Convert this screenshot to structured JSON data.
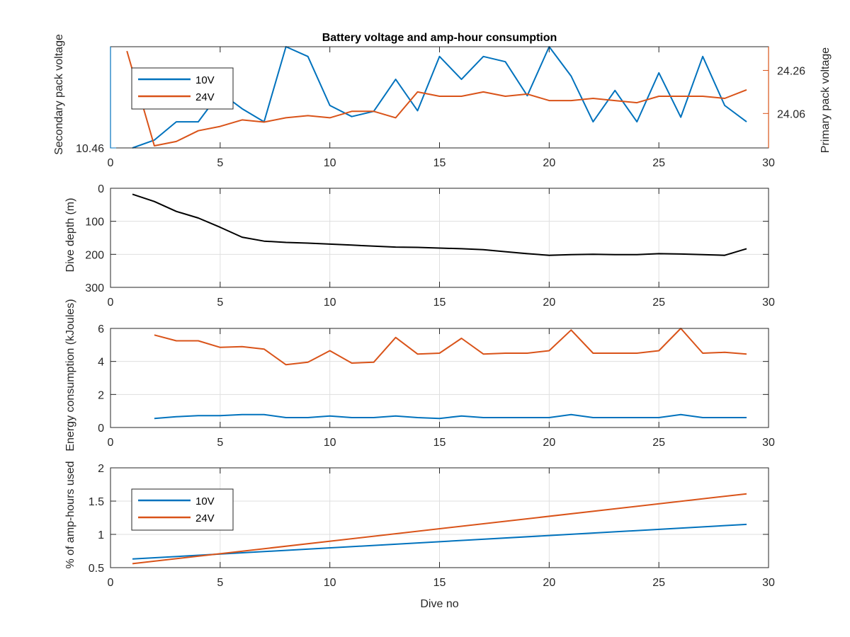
{
  "figure": {
    "title": "Battery voltage and amp-hour consumption",
    "xlabel": "Dive no"
  },
  "colors": {
    "blue": "#0072BD",
    "orange": "#D95319",
    "black": "#000000",
    "axis": "#262626",
    "grid": "#dfdfdf"
  },
  "chart_data": [
    {
      "type": "line",
      "panel": 1,
      "title": "Battery voltage and amp-hour consumption",
      "xlabel": "",
      "ylabel_left": "Secondary pack voltage",
      "ylabel_right": "Primary pack voltage",
      "xlim": [
        0,
        30
      ],
      "xticks": [
        0,
        5,
        10,
        15,
        20,
        25,
        30
      ],
      "ylim_left": [
        10.46,
        10.615
      ],
      "yticks_left": [
        10.46
      ],
      "ylim_right": [
        23.9,
        24.37
      ],
      "yticks_right": [
        24.06,
        24.26
      ],
      "grid": false,
      "legend": {
        "position": "top-left",
        "entries": [
          "10V",
          "24V"
        ]
      },
      "series": [
        {
          "name": "10V",
          "color": "#0072BD",
          "axis": "left",
          "x": [
            1,
            2,
            3,
            4,
            5,
            6,
            7,
            8,
            9,
            10,
            11,
            12,
            13,
            14,
            15,
            16,
            17,
            18,
            19,
            20,
            21,
            22,
            23,
            24,
            25,
            26,
            27,
            28,
            29
          ],
          "y": [
            10.46,
            10.472,
            10.5,
            10.5,
            10.545,
            10.52,
            10.5,
            10.615,
            10.6,
            10.525,
            10.508,
            10.516,
            10.565,
            10.517,
            10.6,
            10.565,
            10.6,
            10.592,
            10.54,
            10.615,
            10.57,
            10.5,
            10.548,
            10.5,
            10.575,
            10.507,
            10.6,
            10.525,
            10.5
          ]
        },
        {
          "name": "24V",
          "color": "#D95319",
          "axis": "right",
          "x": [
            0.75,
            2,
            3,
            4,
            5,
            6,
            7,
            8,
            9,
            10,
            11,
            12,
            13,
            14,
            15,
            16,
            17,
            18,
            19,
            20,
            21,
            22,
            23,
            24,
            25,
            26,
            27,
            28,
            29
          ],
          "y": [
            24.35,
            23.91,
            23.93,
            23.98,
            24.0,
            24.03,
            24.02,
            24.04,
            24.05,
            24.04,
            24.07,
            24.07,
            24.04,
            24.16,
            24.14,
            24.14,
            24.16,
            24.14,
            24.15,
            24.12,
            24.12,
            24.13,
            24.12,
            24.11,
            24.14,
            24.14,
            24.14,
            24.13,
            24.17
          ]
        }
      ]
    },
    {
      "type": "line",
      "panel": 2,
      "xlabel": "",
      "ylabel": "Dive depth (m)",
      "xlim": [
        0,
        30
      ],
      "xticks": [
        0,
        5,
        10,
        15,
        20,
        25,
        30
      ],
      "ylim": [
        0,
        300
      ],
      "yticks": [
        0,
        100,
        200,
        300
      ],
      "yreversed": true,
      "grid": true,
      "series": [
        {
          "name": "",
          "color": "#000000",
          "x": [
            1,
            2,
            3,
            4,
            5,
            6,
            7,
            8,
            9,
            10,
            11,
            12,
            13,
            14,
            15,
            16,
            17,
            18,
            19,
            20,
            21,
            22,
            23,
            24,
            25,
            26,
            27,
            28,
            29
          ],
          "y": [
            18,
            40,
            70,
            90,
            118,
            148,
            160,
            164,
            166,
            169,
            172,
            175,
            178,
            179,
            181,
            183,
            186,
            192,
            198,
            203,
            201,
            200,
            201,
            201,
            198,
            199,
            201,
            203,
            183
          ]
        }
      ]
    },
    {
      "type": "line",
      "panel": 3,
      "xlabel": "",
      "ylabel": "Energy consumption (kJoules)",
      "xlim": [
        0,
        30
      ],
      "xticks": [
        0,
        5,
        10,
        15,
        20,
        25,
        30
      ],
      "ylim": [
        0,
        6
      ],
      "yticks": [
        0,
        2,
        4,
        6
      ],
      "grid": true,
      "series": [
        {
          "name": "",
          "color": "#D95319",
          "x": [
            2,
            3,
            4,
            5,
            6,
            7,
            8,
            9,
            10,
            11,
            12,
            13,
            14,
            15,
            16,
            17,
            18,
            19,
            20,
            21,
            22,
            23,
            24,
            25,
            26,
            27,
            28,
            29
          ],
          "y": [
            5.6,
            5.25,
            5.25,
            4.85,
            4.9,
            4.75,
            3.8,
            3.95,
            4.65,
            3.9,
            3.95,
            5.45,
            4.45,
            4.5,
            5.4,
            4.45,
            4.5,
            4.5,
            4.65,
            5.9,
            4.5,
            4.5,
            4.5,
            4.65,
            6.05,
            4.5,
            4.55,
            4.45
          ]
        },
        {
          "name": "",
          "color": "#0072BD",
          "x": [
            2,
            3,
            4,
            5,
            6,
            7,
            8,
            9,
            10,
            11,
            12,
            13,
            14,
            15,
            16,
            17,
            18,
            19,
            20,
            21,
            22,
            23,
            24,
            25,
            26,
            27,
            28,
            29
          ],
          "y": [
            0.55,
            0.65,
            0.72,
            0.72,
            0.78,
            0.78,
            0.6,
            0.6,
            0.7,
            0.6,
            0.6,
            0.7,
            0.6,
            0.55,
            0.7,
            0.6,
            0.6,
            0.6,
            0.6,
            0.78,
            0.6,
            0.6,
            0.6,
            0.6,
            0.78,
            0.6,
            0.6,
            0.6
          ]
        }
      ]
    },
    {
      "type": "line",
      "panel": 4,
      "xlabel": "Dive no",
      "ylabel": "% of amp-hours used",
      "xlim": [
        0,
        30
      ],
      "xticks": [
        0,
        5,
        10,
        15,
        20,
        25,
        30
      ],
      "ylim": [
        0.5,
        2
      ],
      "yticks": [
        0.5,
        1,
        1.5,
        2
      ],
      "grid": true,
      "legend": {
        "position": "top-left",
        "entries": [
          "10V",
          "24V"
        ]
      },
      "series": [
        {
          "name": "10V",
          "color": "#0072BD",
          "x": [
            1,
            29
          ],
          "y": [
            0.63,
            1.15
          ]
        },
        {
          "name": "24V",
          "color": "#D95319",
          "x": [
            1,
            29
          ],
          "y": [
            0.56,
            1.61
          ]
        }
      ]
    }
  ]
}
